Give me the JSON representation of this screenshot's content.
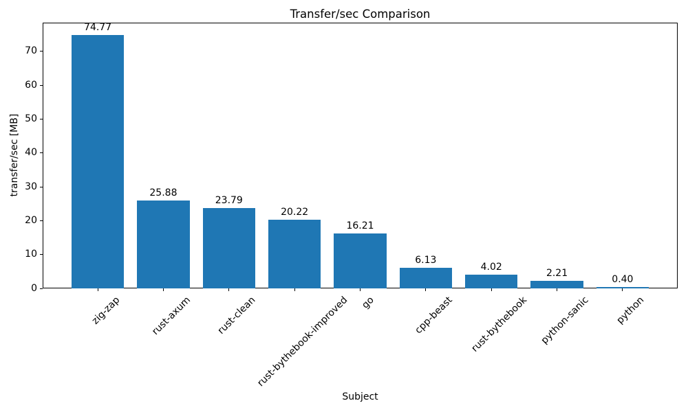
{
  "chart_data": {
    "type": "bar",
    "title": "Transfer/sec Comparison",
    "xlabel": "Subject",
    "ylabel": "transfer/sec [MB]",
    "categories": [
      "zig-zap",
      "rust-axum",
      "rust-clean",
      "rust-bythebook-improved",
      "go",
      "cpp-beast",
      "rust-bythebook",
      "python-sanic",
      "python"
    ],
    "values": [
      74.77,
      25.88,
      23.79,
      20.22,
      16.21,
      6.13,
      4.02,
      2.21,
      0.4
    ],
    "value_label_format_decimals": 2,
    "bar_color": "#1f77b4",
    "ylim": [
      0,
      78.5
    ],
    "yticks": [
      0,
      10,
      20,
      30,
      40,
      50,
      60,
      70
    ],
    "x_tick_rotation_deg": 45,
    "grid": false
  }
}
